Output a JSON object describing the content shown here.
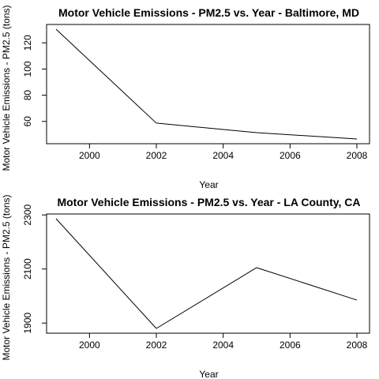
{
  "chart_data": [
    {
      "type": "line",
      "title": "Motor Vehicle Emissions - PM2.5 vs. Year - Baltimore, MD",
      "xlabel": "Year",
      "ylabel": "Motor Vehicle Emissions - PM2.5 (tons)",
      "x": [
        1999,
        2002,
        2005,
        2008
      ],
      "values": [
        130.4,
        58.7,
        51.4,
        46.6
      ],
      "xlim": [
        1999,
        2008
      ],
      "ylim": [
        46.6,
        130.4
      ],
      "xticks": [
        2000,
        2002,
        2004,
        2006,
        2008
      ],
      "yticks": [
        60,
        80,
        100,
        120
      ],
      "grid": false
    },
    {
      "type": "line",
      "title": "Motor Vehicle Emissions - PM2.5 vs. Year - LA County, CA",
      "xlabel": "Year",
      "ylabel": "Motor Vehicle Emissions - PM2.5 (tons)",
      "x": [
        1999,
        2002,
        2005,
        2008
      ],
      "values": [
        2286,
        1880,
        2105,
        1985
      ],
      "xlim": [
        1999,
        2008
      ],
      "ylim": [
        1880,
        2286
      ],
      "xticks": [
        2000,
        2002,
        2004,
        2006,
        2008
      ],
      "yticks": [
        1900,
        2100,
        2300
      ],
      "grid": false
    }
  ]
}
